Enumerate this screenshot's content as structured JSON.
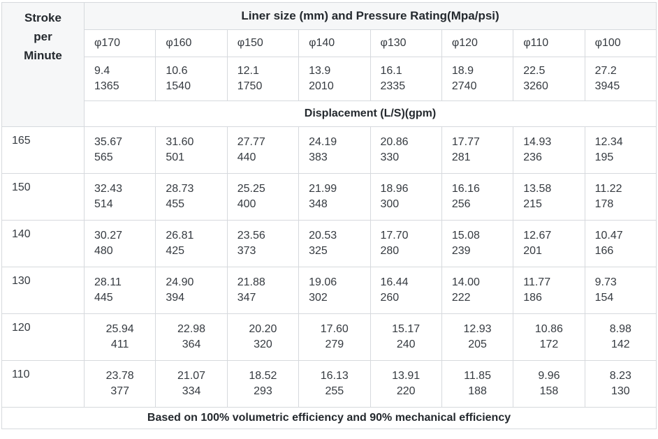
{
  "chart_data": {
    "type": "table",
    "title": "Liner size (mm) and Pressure Rating(Mpa/psi)",
    "corner_header_lines": [
      "Stroke",
      "per",
      "Minute"
    ],
    "corner_header": "Stroke per Minute",
    "columns": [
      "φ170",
      "φ160",
      "φ150",
      "φ140",
      "φ130",
      "φ120",
      "φ110",
      "φ100"
    ],
    "pressure_rating_mpa": [
      "9.4",
      "10.6",
      "12.1",
      "13.9",
      "16.1",
      "18.9",
      "22.5",
      "27.2"
    ],
    "pressure_rating_psi": [
      "1365",
      "1540",
      "1750",
      "2010",
      "2335",
      "2740",
      "3260",
      "3945"
    ],
    "section_header": "Displacement (L/S)(gpm)",
    "rows": [
      {
        "stroke_per_minute": "165",
        "align": "left",
        "lps": [
          "35.67",
          "31.60",
          "27.77",
          "24.19",
          "20.86",
          "17.77",
          "14.93",
          "12.34"
        ],
        "gpm": [
          "565",
          "501",
          "440",
          "383",
          "330",
          "281",
          "236",
          "195"
        ]
      },
      {
        "stroke_per_minute": "150",
        "align": "left",
        "lps": [
          "32.43",
          "28.73",
          "25.25",
          "21.99",
          "18.96",
          "16.16",
          "13.58",
          "11.22"
        ],
        "gpm": [
          "514",
          "455",
          "400",
          "348",
          "300",
          "256",
          "215",
          "178"
        ]
      },
      {
        "stroke_per_minute": "140",
        "align": "left",
        "lps": [
          "30.27",
          "26.81",
          "23.56",
          "20.53",
          "17.70",
          "15.08",
          "12.67",
          "10.47"
        ],
        "gpm": [
          "480",
          "425",
          "373",
          "325",
          "280",
          "239",
          "201",
          "166"
        ]
      },
      {
        "stroke_per_minute": "130",
        "align": "left",
        "lps": [
          "28.11",
          "24.90",
          "21.88",
          "19.06",
          "16.44",
          "14.00",
          "11.77",
          "9.73"
        ],
        "gpm": [
          "445",
          "394",
          "347",
          "302",
          "260",
          "222",
          "186",
          "154"
        ]
      },
      {
        "stroke_per_minute": "120",
        "align": "center",
        "lps": [
          "25.94",
          "22.98",
          "20.20",
          "17.60",
          "15.17",
          "12.93",
          "10.86",
          "8.98"
        ],
        "gpm": [
          "411",
          "364",
          "320",
          "279",
          "240",
          "205",
          "172",
          "142"
        ]
      },
      {
        "stroke_per_minute": "110",
        "align": "center",
        "lps": [
          "23.78",
          "21.07",
          "18.52",
          "16.13",
          "13.91",
          "11.85",
          "9.96",
          "8.23"
        ],
        "gpm": [
          "377",
          "334",
          "293",
          "255",
          "220",
          "188",
          "158",
          "130"
        ]
      }
    ],
    "footnote": "Based on 100% volumetric efficiency and 90% mechanical efficiency",
    "layout": {
      "grid": "on",
      "header_background": "#f6f7f8",
      "border_color": "#d6d9dd",
      "text_color": "#353a40"
    }
  },
  "colors": {
    "header_bg": "#f6f7f8",
    "border": "#d6d9dd",
    "text": "#353a40",
    "bold_text": "#24292e",
    "page_bg": "#ffffff"
  }
}
